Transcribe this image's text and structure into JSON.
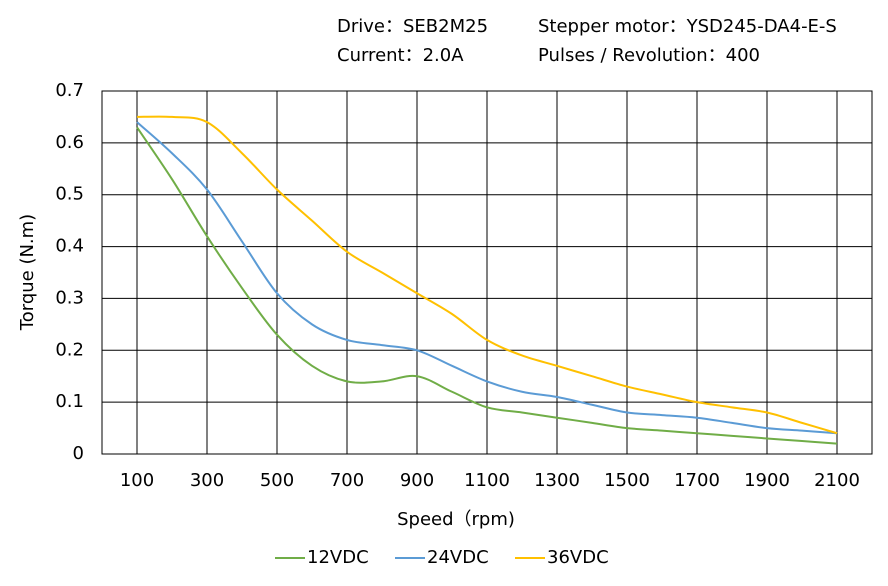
{
  "chart_data": {
    "type": "line",
    "header": [
      "Drive：SEB2M25",
      "Stepper motor：YSD245-DA4-E-S",
      "Current：2.0A",
      "Pulses / Revolution：400"
    ],
    "x_label": "Speed（rpm)",
    "y_label": "Torque (N.m)",
    "x": [
      100,
      200,
      300,
      400,
      500,
      600,
      700,
      800,
      900,
      1000,
      1100,
      1200,
      1300,
      1400,
      1500,
      1600,
      1700,
      1800,
      1900,
      2000,
      2100
    ],
    "series": [
      {
        "name": "12VDC",
        "color": "#70ad47",
        "values": [
          0.63,
          0.53,
          0.42,
          0.32,
          0.23,
          0.17,
          0.14,
          0.14,
          0.15,
          0.12,
          0.09,
          0.08,
          0.07,
          0.06,
          0.05,
          0.045,
          0.04,
          0.035,
          0.03,
          0.025,
          0.02
        ]
      },
      {
        "name": "24VDC",
        "color": "#5b9bd5",
        "values": [
          0.64,
          0.58,
          0.51,
          0.41,
          0.31,
          0.25,
          0.22,
          0.21,
          0.2,
          0.17,
          0.14,
          0.12,
          0.11,
          0.095,
          0.08,
          0.075,
          0.07,
          0.06,
          0.05,
          0.045,
          0.04
        ]
      },
      {
        "name": "36VDC",
        "color": "#ffc000",
        "values": [
          0.65,
          0.65,
          0.64,
          0.58,
          0.51,
          0.45,
          0.39,
          0.35,
          0.31,
          0.27,
          0.22,
          0.19,
          0.17,
          0.15,
          0.13,
          0.115,
          0.1,
          0.09,
          0.08,
          0.06,
          0.04
        ]
      }
    ],
    "xlim": [
      0,
      2200
    ],
    "xticks": [
      100,
      300,
      500,
      700,
      900,
      1100,
      1300,
      1500,
      1700,
      1900,
      2100
    ],
    "ylim": [
      0,
      0.7
    ],
    "yticks": [
      0,
      0.1,
      0.2,
      0.3,
      0.4,
      0.5,
      0.6,
      0.7
    ],
    "grid": true
  }
}
